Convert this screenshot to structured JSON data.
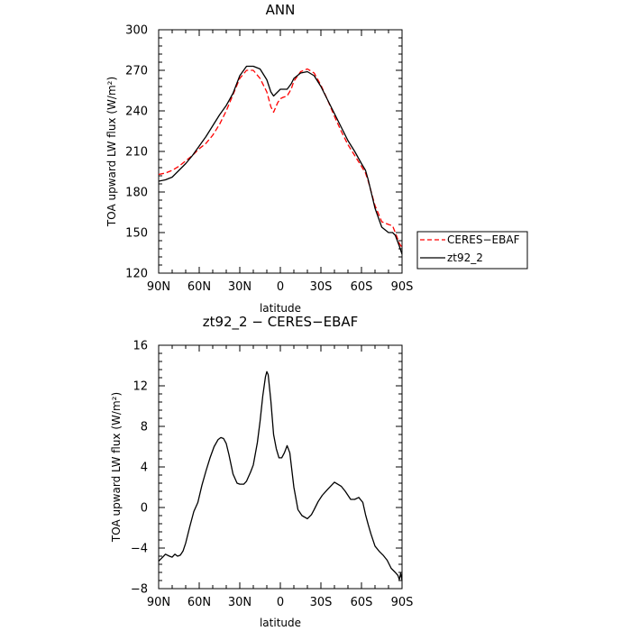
{
  "chart_data": [
    {
      "type": "line",
      "title": "ANN",
      "xlabel": "latitude",
      "ylabel": "TOA upward LW flux (W/m²)",
      "ylim": [
        120,
        300
      ],
      "xlim": [
        90,
        -90
      ],
      "x_ticks": [
        {
          "value": 90,
          "label": "90N"
        },
        {
          "value": 60,
          "label": "60N"
        },
        {
          "value": 30,
          "label": "30N"
        },
        {
          "value": 0,
          "label": "0"
        },
        {
          "value": -30,
          "label": "30S"
        },
        {
          "value": -60,
          "label": "60S"
        },
        {
          "value": -90,
          "label": "90S"
        }
      ],
      "y_ticks": [
        120,
        150,
        180,
        210,
        240,
        270,
        300
      ],
      "legend_position": "right",
      "series": [
        {
          "name": "CERES−EBAF",
          "color": "#ff0000",
          "style": "dashed",
          "x": [
            90,
            85,
            80,
            75,
            70,
            65,
            60,
            55,
            50,
            45,
            40,
            35,
            30,
            25,
            20,
            15,
            10,
            7,
            5,
            2,
            0,
            -2,
            -5,
            -8,
            -10,
            -15,
            -20,
            -25,
            -30,
            -35,
            -40,
            -45,
            -50,
            -55,
            -60,
            -63,
            -65,
            -70,
            -75,
            -80,
            -83,
            -85,
            -88,
            -90
          ],
          "y": [
            193,
            194,
            196,
            199,
            203,
            207,
            212,
            216,
            222,
            230,
            240,
            252,
            264,
            270,
            270,
            264,
            254,
            243,
            239,
            246,
            249,
            250,
            251,
            256,
            262,
            269,
            271,
            268,
            259,
            248,
            236,
            225,
            215,
            207,
            199,
            194,
            188,
            170,
            158,
            156,
            155,
            150,
            142,
            139
          ]
        },
        {
          "name": "zt92_2",
          "color": "#000000",
          "style": "solid",
          "x": [
            90,
            85,
            80,
            75,
            70,
            65,
            60,
            55,
            50,
            45,
            40,
            35,
            30,
            25,
            20,
            15,
            10,
            7,
            5,
            2,
            0,
            -2,
            -5,
            -8,
            -10,
            -15,
            -20,
            -25,
            -30,
            -35,
            -40,
            -45,
            -50,
            -55,
            -60,
            -63,
            -65,
            -70,
            -75,
            -80,
            -83,
            -85,
            -88,
            -90
          ],
          "y": [
            188,
            189,
            191,
            196,
            201,
            207,
            214,
            221,
            229,
            237,
            244,
            253,
            266,
            273,
            273,
            271,
            263,
            254,
            251,
            254,
            256,
            256,
            256,
            260,
            264,
            268,
            269,
            266,
            258,
            248,
            238,
            228,
            218,
            210,
            201,
            196,
            189,
            168,
            154,
            150,
            150,
            148,
            140,
            134
          ]
        }
      ]
    },
    {
      "type": "line",
      "title": "zt92_2 − CERES−EBAF",
      "xlabel": "latitude",
      "ylabel": "TOA upward LW flux (W/m²)",
      "ylim": [
        -8,
        16
      ],
      "xlim": [
        90,
        -90
      ],
      "x_ticks": [
        {
          "value": 90,
          "label": "90N"
        },
        {
          "value": 60,
          "label": "60N"
        },
        {
          "value": 30,
          "label": "30N"
        },
        {
          "value": 0,
          "label": "0"
        },
        {
          "value": -30,
          "label": "30S"
        },
        {
          "value": -60,
          "label": "60S"
        },
        {
          "value": -90,
          "label": "90S"
        }
      ],
      "y_ticks": [
        -8,
        -4,
        0,
        4,
        8,
        12,
        16
      ],
      "series": [
        {
          "name": "",
          "color": "#000000",
          "style": "solid",
          "x": [
            90,
            87,
            85,
            82,
            80,
            78,
            76,
            74,
            72,
            70,
            67,
            64,
            61,
            58,
            55,
            52,
            49,
            46,
            44,
            42,
            40,
            38,
            35,
            32,
            30,
            27,
            25,
            22,
            20,
            17,
            15,
            13,
            11,
            10,
            9,
            7,
            5,
            3,
            1,
            -1,
            -3,
            -5,
            -7,
            -10,
            -13,
            -16,
            -20,
            -23,
            -25,
            -28,
            -31,
            -35,
            -40,
            -45,
            -48,
            -52,
            -55,
            -58,
            -61,
            -63,
            -65,
            -67,
            -70,
            -73,
            -76,
            -79,
            -82,
            -85,
            -87,
            -88,
            -89,
            -90
          ],
          "y": [
            -5.3,
            -4.9,
            -4.6,
            -4.8,
            -4.9,
            -4.6,
            -4.8,
            -4.7,
            -4.3,
            -3.5,
            -1.9,
            -0.4,
            0.5,
            2.2,
            3.6,
            4.9,
            6.0,
            6.7,
            6.9,
            6.8,
            6.3,
            5.2,
            3.3,
            2.4,
            2.3,
            2.3,
            2.6,
            3.5,
            4.2,
            6.4,
            8.5,
            11.0,
            12.9,
            13.4,
            13.1,
            10.5,
            7.2,
            5.8,
            4.9,
            4.9,
            5.4,
            6.1,
            5.4,
            2.0,
            -0.2,
            -0.8,
            -1.1,
            -0.7,
            -0.2,
            0.6,
            1.2,
            1.8,
            2.5,
            2.1,
            1.6,
            0.8,
            0.8,
            1.0,
            0.5,
            -0.7,
            -1.7,
            -2.6,
            -3.8,
            -4.3,
            -4.7,
            -5.2,
            -6.0,
            -6.4,
            -6.7,
            -7.1,
            -6.5,
            -7.2
          ]
        }
      ]
    }
  ]
}
